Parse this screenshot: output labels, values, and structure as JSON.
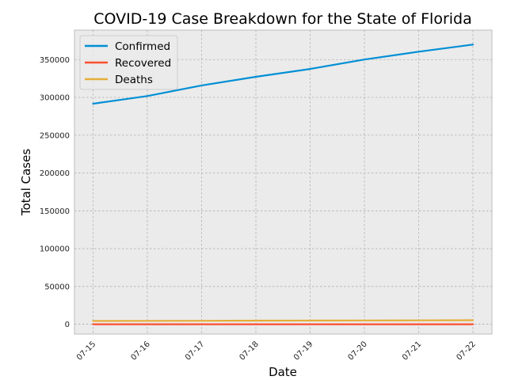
{
  "chart_data": {
    "type": "line",
    "title": "COVID-19 Case Breakdown for the State of Florida",
    "xlabel": "Date",
    "ylabel": "Total Cases",
    "categories": [
      "07-15",
      "07-16",
      "07-17",
      "07-18",
      "07-19",
      "07-20",
      "07-21",
      "07-22"
    ],
    "yticks": [
      "0",
      "50000",
      "100000",
      "150000",
      "200000",
      "250000",
      "300000",
      "350000"
    ],
    "ylim": [
      -13000,
      389000
    ],
    "grid": true,
    "legend_position": "top-left",
    "series": [
      {
        "name": "Confirmed",
        "color": "#008fd5",
        "values": [
          291629,
          301810,
          315775,
          327241,
          337569,
          350047,
          360394,
          369834
        ]
      },
      {
        "name": "Recovered",
        "color": "#fc4f30",
        "values": [
          0,
          0,
          0,
          0,
          0,
          0,
          0,
          0
        ]
      },
      {
        "name": "Deaths",
        "color": "#e5ae38",
        "values": [
          4409,
          4514,
          4626,
          4782,
          4904,
          4995,
          5140,
          5279
        ]
      }
    ]
  }
}
